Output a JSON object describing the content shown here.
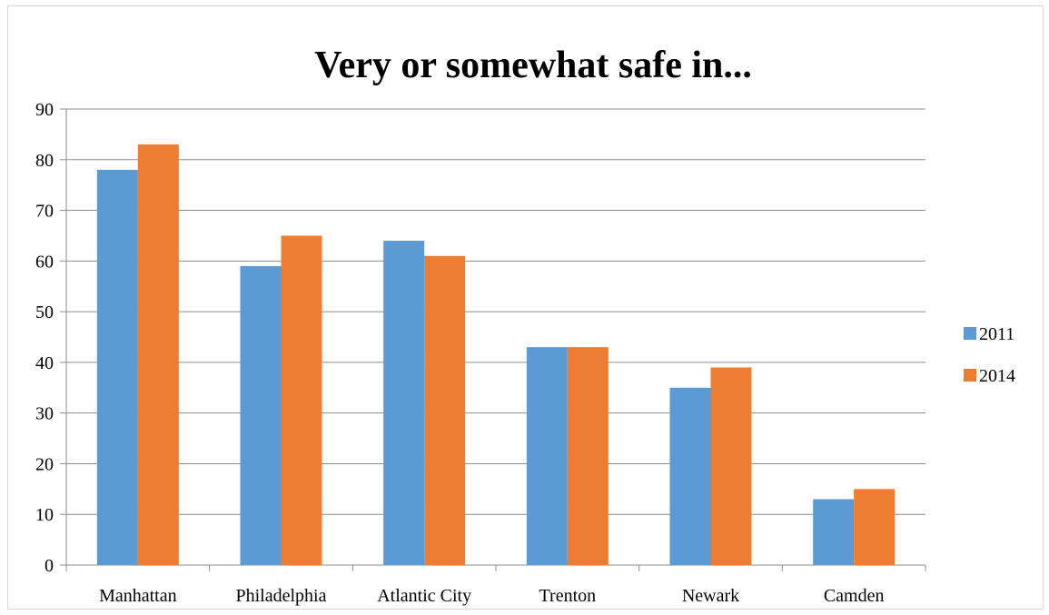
{
  "chart_data": {
    "type": "bar",
    "title": "Very or somewhat safe in...",
    "categories": [
      "Manhattan",
      "Philadelphia",
      "Atlantic City",
      "Trenton",
      "Newark",
      "Camden"
    ],
    "series": [
      {
        "name": "2011",
        "values": [
          78,
          59,
          64,
          43,
          35,
          13
        ],
        "color": "#5b9bd5"
      },
      {
        "name": "2014",
        "values": [
          83,
          65,
          61,
          43,
          39,
          15
        ],
        "color": "#ed7d31"
      }
    ],
    "ylim": [
      0,
      90
    ],
    "yticks": [
      0,
      10,
      20,
      30,
      40,
      50,
      60,
      70,
      80,
      90
    ],
    "grid": true,
    "legend_position": "right"
  }
}
